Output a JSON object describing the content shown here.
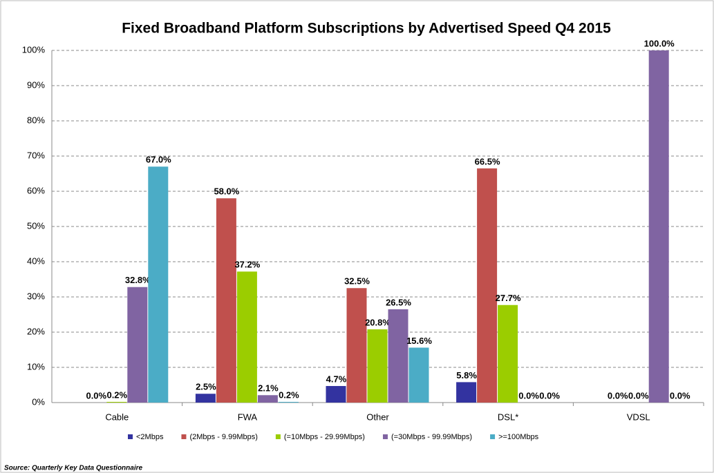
{
  "chart_data": {
    "type": "bar",
    "title": "Fixed Broadband  Platform Subscriptions by Advertised Speed Q4 2015",
    "categories": [
      "Cable",
      "FWA",
      "Other",
      "DSL*",
      "VDSL"
    ],
    "series": [
      {
        "name": "<2Mbps",
        "color": "#3333a0",
        "values": [
          null,
          2.5,
          4.7,
          5.8,
          null
        ],
        "value_labels": [
          null,
          "2.5%",
          "4.7%",
          "5.8%",
          null
        ]
      },
      {
        "name": "(2Mbps - 9.99Mbps)",
        "color": "#c0504d",
        "values": [
          0.0,
          58.0,
          32.5,
          66.5,
          0.0
        ],
        "value_labels": [
          "0.0%",
          "58.0%",
          "32.5%",
          "66.5%",
          "0.0%"
        ]
      },
      {
        "name": "(=10Mbps - 29.99Mbps)",
        "color": "#9bcd00",
        "values": [
          0.2,
          37.2,
          20.8,
          27.7,
          0.0
        ],
        "value_labels": [
          "0.2%",
          "37.2%",
          "20.8%",
          "27.7%",
          "0.0%"
        ]
      },
      {
        "name": "(=30Mbps - 99.99Mbps)",
        "color": "#8064a2",
        "values": [
          32.8,
          2.1,
          26.5,
          0.0,
          100.0
        ],
        "value_labels": [
          "32.8%",
          "2.1%",
          "26.5%",
          "0.0%",
          "100.0%"
        ]
      },
      {
        "name": ">=100Mbps",
        "color": "#4bacc6",
        "values": [
          67.0,
          0.2,
          15.6,
          0.0,
          0.0
        ],
        "value_labels": [
          "67.0%",
          "0.2%",
          "15.6%",
          "0.0%",
          "0.0%"
        ]
      }
    ],
    "ylim": [
      0,
      100
    ],
    "yticks": [
      {
        "value": 0,
        "label": "0%"
      },
      {
        "value": 10,
        "label": "10%"
      },
      {
        "value": 20,
        "label": "20%"
      },
      {
        "value": 30,
        "label": "30%"
      },
      {
        "value": 40,
        "label": "40%"
      },
      {
        "value": 50,
        "label": "50%"
      },
      {
        "value": 60,
        "label": "60%"
      },
      {
        "value": 70,
        "label": "70%"
      },
      {
        "value": 80,
        "label": "80%"
      },
      {
        "value": 90,
        "label": "90%"
      },
      {
        "value": 100,
        "label": "100%"
      }
    ],
    "grid": true,
    "legend": "bottom",
    "source": "Source:  Quarterly Key Data Questionnaire"
  }
}
